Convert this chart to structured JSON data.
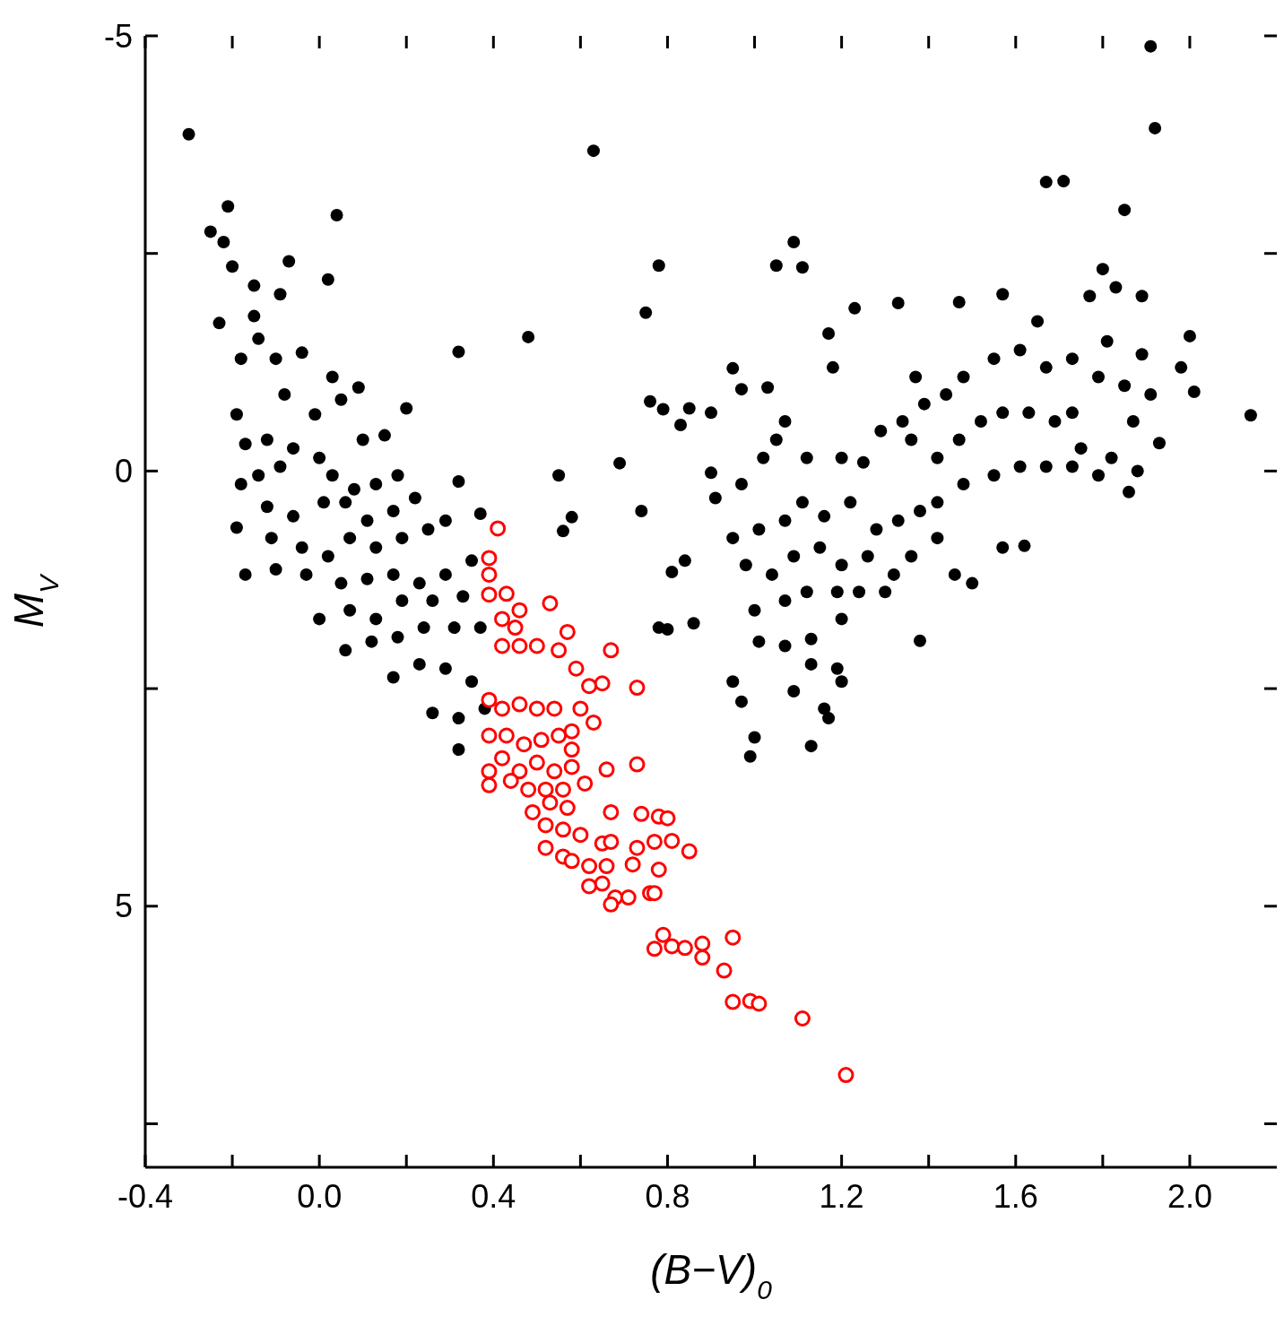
{
  "chart_data": {
    "type": "scatter",
    "xlabel": "(B−V)$_{0}$",
    "ylabel": "M$_{V}$",
    "xlim": [
      -0.4,
      2.2
    ],
    "ylim": [
      8,
      -5
    ],
    "xticks": [
      {
        "value": -0.4,
        "label": "-0.4"
      },
      {
        "value": -0.2,
        "label": null
      },
      {
        "value": 0,
        "label": "0.0"
      },
      {
        "value": 0.2,
        "label": null
      },
      {
        "value": 0.4,
        "label": "0.4"
      },
      {
        "value": 0.6,
        "label": null
      },
      {
        "value": 0.8,
        "label": "0.8"
      },
      {
        "value": 1,
        "label": null
      },
      {
        "value": 1.2,
        "label": "1.2"
      },
      {
        "value": 1.4,
        "label": null
      },
      {
        "value": 1.6,
        "label": "1.6"
      },
      {
        "value": 1.8,
        "label": null
      },
      {
        "value": 2,
        "label": "2.0"
      }
    ],
    "yticks": [
      -5,
      {
        "value": -2.5,
        "label": null
      },
      0,
      {
        "value": 2.5,
        "label": null
      },
      5,
      {
        "value": 7.5,
        "label": null
      }
    ],
    "marker": "circle",
    "series": [
      {
        "color": "#000000",
        "x": [
          -0.3,
          0.63,
          1.91,
          1.92,
          1.67,
          1.71,
          1.85,
          -0.21,
          -0.25,
          -0.22,
          0.04,
          -0.2,
          -0.07,
          0.02,
          -0.15,
          -0.09,
          -0.23,
          -0.15,
          -0.14,
          -0.18,
          -0.1,
          -0.04,
          0.32,
          0.48,
          0.03,
          0.09,
          -0.19,
          -0.08,
          -0.01,
          0.05,
          0.2,
          0.15,
          -0.17,
          -0.12,
          -0.06,
          0.0,
          0.1,
          -0.18,
          -0.14,
          -0.09,
          0.03,
          0.08,
          0.13,
          0.18,
          -0.19,
          -0.12,
          -0.06,
          0.01,
          0.06,
          0.11,
          0.17,
          0.22,
          -0.17,
          -0.11,
          -0.04,
          0.02,
          0.07,
          0.13,
          0.19,
          0.25,
          0.29,
          -0.1,
          -0.03,
          0.05,
          0.11,
          0.17,
          0.23,
          0.29,
          0.35,
          0.0,
          0.07,
          0.13,
          0.19,
          0.26,
          0.33,
          0.06,
          0.12,
          0.18,
          0.24,
          0.31,
          0.37,
          0.17,
          0.23,
          0.29,
          0.35,
          0.26,
          0.32,
          0.38,
          0.32,
          0.32,
          0.37,
          0.55,
          0.58,
          0.56,
          0.69,
          0.74,
          0.75,
          0.78,
          0.76,
          0.79,
          0.83,
          0.85,
          0.9,
          0.9,
          0.81,
          0.84,
          0.78,
          0.8,
          0.86,
          0.95,
          0.97,
          1.0,
          0.99,
          0.95,
          0.97,
          1.03,
          1.05,
          1.11,
          1.09,
          1.23,
          1.18,
          1.17,
          1.33,
          1.47,
          1.57,
          1.65,
          1.77,
          1.8,
          1.83,
          1.89,
          0.91,
          0.97,
          1.02,
          1.05,
          1.07,
          1.12,
          1.2,
          1.25,
          1.29,
          1.34,
          0.95,
          1.01,
          1.07,
          1.11,
          1.16,
          1.22,
          1.28,
          1.33,
          1.38,
          1.42,
          0.98,
          1.04,
          1.09,
          1.15,
          1.2,
          1.26,
          1.32,
          1.36,
          1.0,
          1.07,
          1.12,
          1.19,
          1.24,
          1.3,
          1.01,
          1.07,
          1.13,
          1.2,
          1.38,
          1.09,
          1.13,
          1.19,
          1.2,
          1.16,
          1.17,
          1.13,
          1.42,
          1.47,
          1.52,
          1.57,
          1.63,
          1.69,
          1.73,
          1.44,
          1.48,
          1.55,
          1.61,
          1.67,
          1.73,
          1.79,
          1.85,
          1.48,
          1.55,
          1.61,
          1.67,
          1.73,
          1.79,
          1.86,
          1.36,
          1.39,
          1.37,
          1.42,
          1.46,
          1.5,
          1.57,
          1.62,
          1.81,
          1.89,
          1.93,
          1.91,
          1.98,
          2.0,
          2.01,
          2.14,
          1.75,
          1.82,
          1.87,
          1.88
        ],
        "values": [
          -3.87,
          -3.68,
          -4.88,
          -3.94,
          -3.32,
          -3.33,
          -3.0,
          -3.04,
          -2.75,
          -2.63,
          -2.94,
          -2.35,
          -2.41,
          -2.2,
          -2.13,
          -2.03,
          -1.7,
          -1.78,
          -1.52,
          -1.29,
          -1.29,
          -1.36,
          -1.37,
          -1.54,
          -1.08,
          -0.96,
          -0.65,
          -0.88,
          -0.65,
          -0.82,
          -0.72,
          -0.41,
          -0.31,
          -0.36,
          -0.26,
          -0.15,
          -0.36,
          0.15,
          0.05,
          -0.05,
          0.05,
          0.21,
          0.15,
          0.05,
          0.65,
          0.41,
          0.52,
          0.36,
          0.36,
          0.57,
          0.46,
          0.31,
          1.19,
          0.77,
          0.88,
          0.98,
          0.77,
          0.88,
          0.77,
          0.67,
          0.57,
          1.13,
          1.19,
          1.29,
          1.24,
          1.19,
          1.29,
          1.19,
          1.03,
          1.7,
          1.6,
          1.7,
          1.49,
          1.49,
          1.44,
          2.06,
          1.96,
          1.91,
          1.8,
          1.8,
          1.8,
          2.37,
          2.22,
          2.27,
          2.42,
          2.78,
          2.84,
          2.73,
          3.2,
          0.12,
          0.49,
          0.05,
          0.53,
          0.69,
          -0.09,
          0.46,
          -1.82,
          -2.36,
          -0.8,
          -0.71,
          -0.53,
          -0.72,
          -0.67,
          0.02,
          1.16,
          1.03,
          1.8,
          1.82,
          1.75,
          2.42,
          2.65,
          3.06,
          3.28,
          -1.18,
          -0.94,
          -0.96,
          -2.36,
          -2.34,
          -2.63,
          -1.87,
          -1.19,
          -1.58,
          -1.93,
          -1.94,
          -2.03,
          -1.72,
          -2.01,
          -2.32,
          -2.11,
          -2.01,
          0.31,
          0.15,
          -0.15,
          -0.36,
          -0.57,
          -0.15,
          -0.15,
          -0.1,
          -0.46,
          -0.57,
          0.77,
          0.67,
          0.57,
          0.36,
          0.52,
          0.36,
          0.67,
          0.57,
          0.46,
          0.36,
          1.08,
          1.19,
          0.98,
          0.88,
          1.08,
          0.98,
          1.19,
          0.98,
          1.6,
          1.49,
          1.39,
          1.39,
          1.39,
          1.39,
          1.96,
          2.01,
          1.93,
          1.7,
          1.95,
          2.53,
          2.22,
          2.27,
          2.42,
          2.73,
          2.84,
          3.16,
          -0.15,
          -0.36,
          -0.57,
          -0.67,
          -0.67,
          -0.57,
          -0.67,
          -0.88,
          -1.08,
          -1.29,
          -1.39,
          -1.19,
          -1.29,
          -1.08,
          -0.98,
          0.15,
          0.05,
          -0.05,
          -0.05,
          -0.05,
          0.05,
          0.24,
          -0.36,
          -0.77,
          -1.08,
          0.77,
          1.19,
          1.29,
          0.88,
          0.86,
          -1.49,
          -1.34,
          -0.32,
          -0.88,
          -1.19,
          -1.55,
          -0.91,
          -0.64,
          -0.26,
          -0.15,
          -0.57,
          0.0
        ]
      },
      {
        "color": "#ff0000",
        "x": [
          0.41,
          0.39,
          0.39,
          0.39,
          0.43,
          0.46,
          0.42,
          0.45,
          0.42,
          0.46,
          0.5,
          0.53,
          0.57,
          0.55,
          0.67,
          0.73,
          0.59,
          0.62,
          0.65,
          0.6,
          0.63,
          0.58,
          0.54,
          0.5,
          0.46,
          0.42,
          0.39,
          0.39,
          0.43,
          0.47,
          0.51,
          0.55,
          0.58,
          0.42,
          0.46,
          0.5,
          0.54,
          0.58,
          0.39,
          0.39,
          0.44,
          0.48,
          0.52,
          0.56,
          0.61,
          0.49,
          0.53,
          0.57,
          0.52,
          0.56,
          0.6,
          0.52,
          0.56,
          0.62,
          0.65,
          0.66,
          0.73,
          0.67,
          0.74,
          0.78,
          0.8,
          0.73,
          0.77,
          0.81,
          0.67,
          0.58,
          0.66,
          0.72,
          0.78,
          0.85,
          0.62,
          0.65,
          0.68,
          0.67,
          0.71,
          0.76,
          0.77,
          0.79,
          0.77,
          0.81,
          0.84,
          0.88,
          0.88,
          0.95,
          0.93,
          0.95,
          0.99,
          1.01,
          1.11,
          1.21
        ],
        "values": [
          0.66,
          1.0,
          1.19,
          1.42,
          1.41,
          1.6,
          1.7,
          1.8,
          2.01,
          2.01,
          2.01,
          1.52,
          1.85,
          2.06,
          2.06,
          2.49,
          2.27,
          2.47,
          2.44,
          2.73,
          2.89,
          2.99,
          2.73,
          2.73,
          2.68,
          2.73,
          2.63,
          3.04,
          3.04,
          3.14,
          3.09,
          3.04,
          3.2,
          3.3,
          3.45,
          3.35,
          3.45,
          3.4,
          3.45,
          3.61,
          3.56,
          3.66,
          3.66,
          3.66,
          3.59,
          3.92,
          3.81,
          3.87,
          4.07,
          4.12,
          4.18,
          4.33,
          4.43,
          4.54,
          4.28,
          3.43,
          3.37,
          3.92,
          3.94,
          3.97,
          3.99,
          4.33,
          4.26,
          4.25,
          4.26,
          4.48,
          4.54,
          4.52,
          4.58,
          4.37,
          4.77,
          4.74,
          4.9,
          4.98,
          4.9,
          4.85,
          4.85,
          5.33,
          5.49,
          5.46,
          5.48,
          5.43,
          5.59,
          5.36,
          5.74,
          6.1,
          6.09,
          6.12,
          6.29,
          6.94
        ]
      }
    ]
  }
}
